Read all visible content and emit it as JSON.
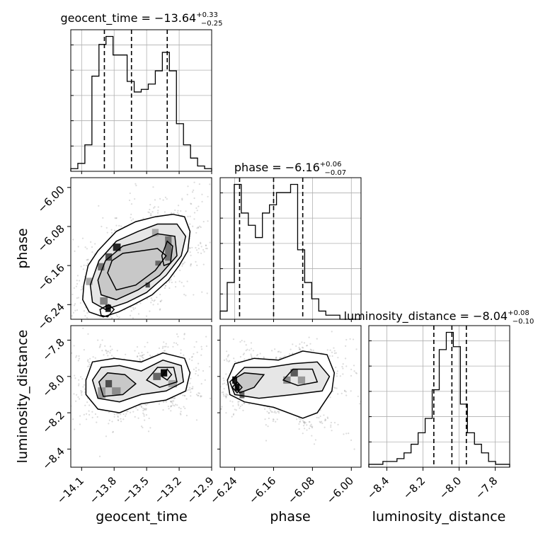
{
  "chart_data": {
    "type": "corner",
    "parameters": [
      {
        "name": "geocent_time",
        "axis_label": "geocent_time",
        "title_main": "geocent_time = −13.64",
        "title_sup": "+0.33",
        "title_sub": "−0.25",
        "range": [
          -14.2,
          -12.9
        ],
        "ticks": [
          -14.1,
          -13.8,
          -13.5,
          -13.2,
          -12.9
        ],
        "tick_labels": [
          "−14.1",
          "−13.8",
          "−13.5",
          "−13.2",
          "−12.9"
        ],
        "quantiles": [
          -13.89,
          -13.64,
          -13.31
        ],
        "hist_edges": [
          -14.2,
          -14.135,
          -14.07,
          -14.005,
          -13.94,
          -13.875,
          -13.81,
          -13.745,
          -13.68,
          -13.615,
          -13.55,
          -13.485,
          -13.42,
          -13.355,
          -13.29,
          -13.225,
          -13.16,
          -13.095,
          -13.03,
          -12.965,
          -12.9
        ],
        "hist_counts": [
          1,
          3,
          10,
          36,
          48,
          51,
          44,
          44,
          34,
          30,
          31,
          33,
          38,
          45,
          38,
          18,
          10,
          5,
          2,
          1
        ]
      },
      {
        "name": "phase",
        "axis_label": "phase",
        "title_main": "phase = −6.16",
        "title_sup": "+0.06",
        "title_sub": "−0.07",
        "range": [
          -6.27,
          -5.98
        ],
        "ticks": [
          -6.24,
          -6.16,
          -6.08,
          -6.0
        ],
        "tick_labels": [
          "−6.24",
          "−6.16",
          "−6.08",
          "−6.00"
        ],
        "quantiles": [
          -6.23,
          -6.16,
          -6.1
        ],
        "hist_edges": [
          -6.27,
          -6.2555,
          -6.241,
          -6.2265,
          -6.212,
          -6.1975,
          -6.183,
          -6.1685,
          -6.154,
          -6.1395,
          -6.125,
          -6.1105,
          -6.096,
          -6.0815,
          -6.067,
          -6.0525,
          -6.038,
          -6.0235,
          -6.009,
          -5.9945,
          -5.98
        ],
        "hist_counts": [
          2,
          9,
          33,
          26,
          23,
          20,
          26,
          28,
          31,
          31,
          33,
          17,
          9,
          5,
          2,
          1,
          1,
          0,
          0,
          0
        ]
      },
      {
        "name": "luminosity_distance",
        "axis_label": "luminosity_distance",
        "title_main": "luminosity_distance = −8.04",
        "title_sup": "+0.08",
        "title_sub": "−0.10",
        "range": [
          -8.5,
          -7.72
        ],
        "ticks": [
          -8.4,
          -8.2,
          -8.0,
          -7.8
        ],
        "tick_labels": [
          "−8.4",
          "−8.2",
          "−8.0",
          "−7.8"
        ],
        "quantiles": [
          -8.14,
          -8.04,
          -7.96
        ],
        "hist_edges": [
          -8.5,
          -8.461,
          -8.422,
          -8.383,
          -8.344,
          -8.305,
          -8.266,
          -8.227,
          -8.188,
          -8.149,
          -8.11,
          -8.071,
          -8.032,
          -7.993,
          -7.954,
          -7.915,
          -7.876,
          -7.837,
          -7.798,
          -7.759,
          -7.72
        ],
        "hist_counts": [
          1,
          1,
          2,
          2,
          3,
          5,
          8,
          12,
          17,
          27,
          41,
          47,
          42,
          22,
          12,
          8,
          5,
          2,
          1,
          1
        ]
      }
    ],
    "pair_panels": [
      {
        "x": "geocent_time",
        "y": "phase",
        "density_blocks": [
          {
            "x": [
              -13.81,
              -13.74
            ],
            "y": [
              -6.13,
              -6.115
            ],
            "shade": 0.85
          },
          {
            "x": [
              -13.88,
              -13.82
            ],
            "y": [
              -6.15,
              -6.135
            ],
            "shade": 0.7
          },
          {
            "x": [
              -13.95,
              -13.89
            ],
            "y": [
              -6.17,
              -6.155
            ],
            "shade": 0.55
          },
          {
            "x": [
              -14.06,
              -14.0
            ],
            "y": [
              -6.2,
              -6.185
            ],
            "shade": 0.35
          },
          {
            "x": [
              -13.88,
              -13.83
            ],
            "y": [
              -6.255,
              -6.24
            ],
            "shade": 0.9
          },
          {
            "x": [
              -13.93,
              -13.86
            ],
            "y": [
              -6.24,
              -6.225
            ],
            "shade": 0.5
          },
          {
            "x": [
              -13.33,
              -13.27
            ],
            "y": [
              -6.15,
              -6.1
            ],
            "shade": 0.55
          },
          {
            "x": [
              -13.42,
              -13.37
            ],
            "y": [
              -6.16,
              -6.15
            ],
            "shade": 0.6
          },
          {
            "x": [
              -13.51,
              -13.47
            ],
            "y": [
              -6.205,
              -6.195
            ],
            "shade": 0.7
          },
          {
            "x": [
              -13.45,
              -13.39
            ],
            "y": [
              -6.1,
              -6.085
            ],
            "shade": 0.35
          }
        ],
        "contours": [
          [
            [
              -14.08,
              -6.2
            ],
            [
              -14.04,
              -6.16
            ],
            [
              -13.95,
              -6.13
            ],
            [
              -13.78,
              -6.09
            ],
            [
              -13.6,
              -6.07
            ],
            [
              -13.42,
              -6.06
            ],
            [
              -13.26,
              -6.055
            ],
            [
              -13.15,
              -6.06
            ],
            [
              -13.1,
              -6.09
            ],
            [
              -13.12,
              -6.13
            ],
            [
              -13.2,
              -6.16
            ],
            [
              -13.3,
              -6.19
            ],
            [
              -13.45,
              -6.22
            ],
            [
              -13.62,
              -6.24
            ],
            [
              -13.76,
              -6.255
            ],
            [
              -13.9,
              -6.265
            ],
            [
              -14.03,
              -6.255
            ],
            [
              -14.09,
              -6.23
            ]
          ],
          [
            [
              -14.02,
              -6.2
            ],
            [
              -13.94,
              -6.15
            ],
            [
              -13.78,
              -6.11
            ],
            [
              -13.58,
              -6.09
            ],
            [
              -13.4,
              -6.075
            ],
            [
              -13.22,
              -6.075
            ],
            [
              -13.14,
              -6.1
            ],
            [
              -13.18,
              -6.14
            ],
            [
              -13.32,
              -6.18
            ],
            [
              -13.5,
              -6.215
            ],
            [
              -13.68,
              -6.235
            ],
            [
              -13.88,
              -6.25
            ],
            [
              -14.0,
              -6.235
            ]
          ],
          [
            [
              -13.95,
              -6.19
            ],
            [
              -13.88,
              -6.15
            ],
            [
              -13.72,
              -6.12
            ],
            [
              -13.55,
              -6.11
            ],
            [
              -13.4,
              -6.095
            ],
            [
              -13.24,
              -6.1
            ],
            [
              -13.22,
              -6.14
            ],
            [
              -13.38,
              -6.18
            ],
            [
              -13.58,
              -6.21
            ],
            [
              -13.78,
              -6.23
            ],
            [
              -13.92,
              -6.22
            ]
          ],
          [
            [
              -13.86,
              -6.175
            ],
            [
              -13.82,
              -6.15
            ],
            [
              -13.72,
              -6.135
            ],
            [
              -13.55,
              -6.13
            ],
            [
              -13.4,
              -6.125
            ],
            [
              -13.32,
              -6.14
            ],
            [
              -13.42,
              -6.17
            ],
            [
              -13.6,
              -6.2
            ],
            [
              -13.78,
              -6.21
            ]
          ],
          [
            [
              -13.36,
              -6.14
            ],
            [
              -13.31,
              -6.11
            ],
            [
              -13.26,
              -6.12
            ],
            [
              -13.28,
              -6.155
            ],
            [
              -13.34,
              -6.16
            ]
          ],
          [
            [
              -13.93,
              -6.25
            ],
            [
              -13.85,
              -6.24
            ],
            [
              -13.8,
              -6.25
            ],
            [
              -13.86,
              -6.265
            ],
            [
              -13.92,
              -6.262
            ]
          ]
        ],
        "scatter_seed": 11,
        "scatter_count": 1500
      },
      {
        "x": "geocent_time",
        "y": "luminosity_distance",
        "density_blocks": [
          {
            "x": [
              -13.37,
              -13.31
            ],
            "y": [
              -8.0,
              -7.96
            ],
            "shade": 0.95
          },
          {
            "x": [
              -13.44,
              -13.37
            ],
            "y": [
              -8.02,
              -7.98
            ],
            "shade": 0.6
          },
          {
            "x": [
              -13.88,
              -13.82
            ],
            "y": [
              -8.06,
              -8.02
            ],
            "shade": 0.7
          },
          {
            "x": [
              -13.82,
              -13.74
            ],
            "y": [
              -8.1,
              -8.06
            ],
            "shade": 0.45
          },
          {
            "x": [
              -13.95,
              -13.88
            ],
            "y": [
              -8.12,
              -8.06
            ],
            "shade": 0.4
          },
          {
            "x": [
              -13.3,
              -13.22
            ],
            "y": [
              -8.06,
              -8.02
            ],
            "shade": 0.35
          }
        ],
        "contours": [
          [
            [
              -14.06,
              -8.02
            ],
            [
              -14.0,
              -7.92
            ],
            [
              -13.8,
              -7.9
            ],
            [
              -13.55,
              -7.92
            ],
            [
              -13.35,
              -7.87
            ],
            [
              -13.15,
              -7.9
            ],
            [
              -13.1,
              -7.98
            ],
            [
              -13.14,
              -8.08
            ],
            [
              -13.32,
              -8.13
            ],
            [
              -13.55,
              -8.15
            ],
            [
              -13.75,
              -8.2
            ],
            [
              -13.95,
              -8.18
            ],
            [
              -14.06,
              -8.1
            ]
          ],
          [
            [
              -14.0,
              -8.02
            ],
            [
              -13.92,
              -7.95
            ],
            [
              -13.75,
              -7.94
            ],
            [
              -13.55,
              -7.97
            ],
            [
              -13.35,
              -7.91
            ],
            [
              -13.18,
              -7.94
            ],
            [
              -13.16,
              -8.03
            ],
            [
              -13.32,
              -8.08
            ],
            [
              -13.55,
              -8.1
            ],
            [
              -13.75,
              -8.14
            ],
            [
              -13.95,
              -8.12
            ]
          ],
          [
            [
              -13.94,
              -8.03
            ],
            [
              -13.86,
              -7.98
            ],
            [
              -13.7,
              -7.99
            ],
            [
              -13.6,
              -8.04
            ],
            [
              -13.72,
              -8.1
            ],
            [
              -13.9,
              -8.11
            ]
          ],
          [
            [
              -13.5,
              -8.02
            ],
            [
              -13.4,
              -7.95
            ],
            [
              -13.25,
              -7.95
            ],
            [
              -13.22,
              -8.03
            ],
            [
              -13.38,
              -8.06
            ]
          ],
          [
            [
              -13.36,
              -8.0
            ],
            [
              -13.31,
              -7.96
            ],
            [
              -13.27,
              -7.99
            ],
            [
              -13.31,
              -8.02
            ]
          ]
        ],
        "scatter_seed": 23,
        "scatter_count": 1500
      },
      {
        "x": "phase",
        "y": "luminosity_distance",
        "density_blocks": [
          {
            "x": [
              -6.245,
              -6.235
            ],
            "y": [
              -8.04,
              -8.0
            ],
            "shade": 0.9
          },
          {
            "x": [
              -6.24,
              -6.23
            ],
            "y": [
              -8.08,
              -8.04
            ],
            "shade": 0.95
          },
          {
            "x": [
              -6.23,
              -6.22
            ],
            "y": [
              -8.12,
              -8.08
            ],
            "shade": 0.6
          },
          {
            "x": [
              -6.125,
              -6.11
            ],
            "y": [
              -8.0,
              -7.96
            ],
            "shade": 0.65
          },
          {
            "x": [
              -6.14,
              -6.125
            ],
            "y": [
              -8.04,
              -8.0
            ],
            "shade": 0.45
          },
          {
            "x": [
              -6.11,
              -6.095
            ],
            "y": [
              -8.04,
              -8.0
            ],
            "shade": 0.4
          }
        ],
        "contours": [
          [
            [
              -6.255,
              -8.02
            ],
            [
              -6.24,
              -7.93
            ],
            [
              -6.2,
              -7.9
            ],
            [
              -6.15,
              -7.91
            ],
            [
              -6.1,
              -7.86
            ],
            [
              -6.05,
              -7.88
            ],
            [
              -6.035,
              -7.98
            ],
            [
              -6.04,
              -8.08
            ],
            [
              -6.07,
              -8.2
            ],
            [
              -6.1,
              -8.23
            ],
            [
              -6.16,
              -8.17
            ],
            [
              -6.22,
              -8.14
            ],
            [
              -6.25,
              -8.1
            ]
          ],
          [
            [
              -6.25,
              -8.03
            ],
            [
              -6.22,
              -7.95
            ],
            [
              -6.17,
              -7.95
            ],
            [
              -6.12,
              -7.93
            ],
            [
              -6.07,
              -7.92
            ],
            [
              -6.045,
              -8.0
            ],
            [
              -6.06,
              -8.08
            ],
            [
              -6.12,
              -8.1
            ],
            [
              -6.19,
              -8.12
            ],
            [
              -6.24,
              -8.1
            ]
          ],
          [
            [
              -6.245,
              -8.02
            ],
            [
              -6.22,
              -7.98
            ],
            [
              -6.18,
              -7.99
            ],
            [
              -6.2,
              -8.06
            ],
            [
              -6.23,
              -8.09
            ]
          ],
          [
            [
              -6.14,
              -8.02
            ],
            [
              -6.12,
              -7.96
            ],
            [
              -6.08,
              -7.96
            ],
            [
              -6.07,
              -8.03
            ],
            [
              -6.11,
              -8.05
            ]
          ],
          [
            [
              -6.245,
              -8.06
            ],
            [
              -6.235,
              -8.03
            ],
            [
              -6.225,
              -8.06
            ],
            [
              -6.235,
              -8.09
            ]
          ]
        ],
        "scatter_seed": 37,
        "scatter_count": 1500
      }
    ]
  }
}
